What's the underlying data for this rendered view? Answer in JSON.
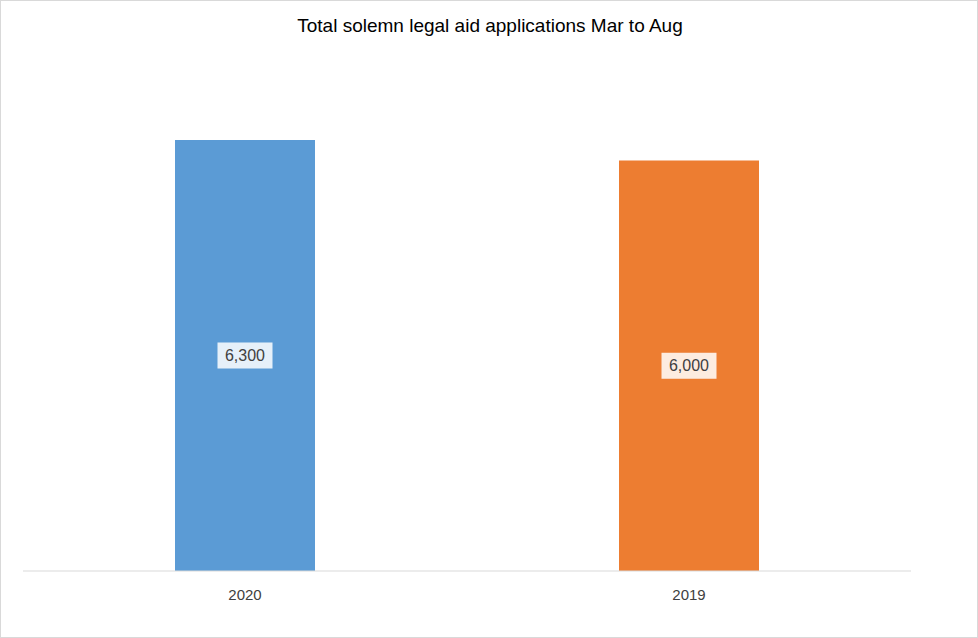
{
  "chart_data": {
    "type": "bar",
    "title": "Total solemn legal aid applications Mar to Aug",
    "categories": [
      "2020",
      "2019"
    ],
    "values": [
      6300,
      6000
    ],
    "value_labels": [
      "6,300",
      "6,000"
    ],
    "colors": [
      "#5b9bd5",
      "#ed7d31"
    ],
    "data_labels": true,
    "tick_labels": "x",
    "grid": false
  }
}
